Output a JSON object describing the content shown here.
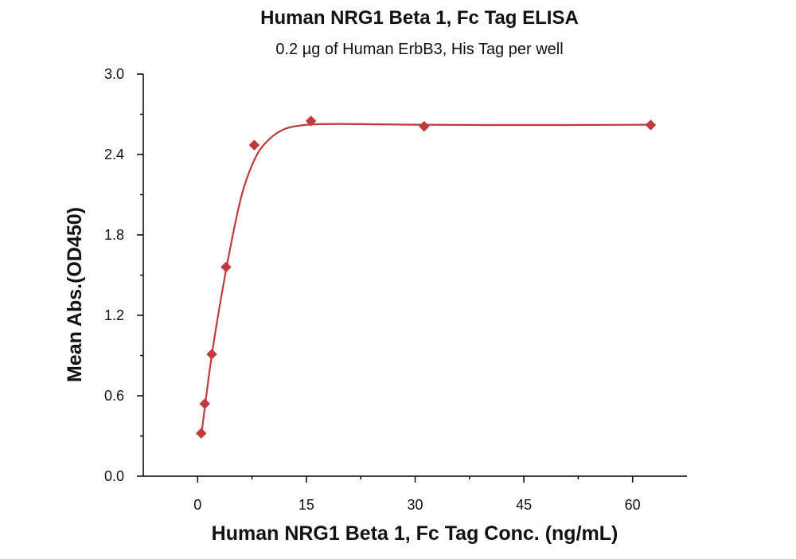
{
  "chart_data": {
    "type": "scatter",
    "title": "Human NRG1 Beta 1, Fc Tag ELISA",
    "subtitle": "0.2 µg of Human ErbB3, His Tag per well",
    "xlabel": "Human NRG1 Beta 1, Fc Tag Conc. (ng/mL)",
    "ylabel": "Mean Abs.(OD450)",
    "xlim": [
      -7.5,
      67.5
    ],
    "ylim": [
      0,
      3.0
    ],
    "x_ticks": [
      0,
      15,
      30,
      45,
      60
    ],
    "x_tick_labels": [
      "0",
      "15",
      "30",
      "45",
      "60"
    ],
    "y_ticks": [
      0,
      0.6,
      1.2,
      1.8,
      2.4,
      3.0
    ],
    "y_tick_labels": [
      "0.0",
      "0.6",
      "1.2",
      "1.8",
      "2.4",
      "3.0"
    ],
    "grid": false,
    "legend": "none",
    "color": "#c0393b",
    "series": [
      {
        "name": "OD450",
        "x": [
          0.49,
          0.98,
          1.95,
          3.91,
          7.81,
          15.63,
          31.25,
          62.5
        ],
        "y": [
          0.32,
          0.54,
          0.91,
          1.56,
          2.47,
          2.65,
          2.61,
          2.62
        ],
        "fit_curve": {
          "x": [
            0.49,
            2,
            4,
            6,
            8,
            10,
            12,
            14,
            16,
            20,
            25,
            30,
            40,
            50,
            62.5
          ],
          "y": [
            0.3,
            0.92,
            1.56,
            2.08,
            2.38,
            2.52,
            2.59,
            2.615,
            2.625,
            2.628,
            2.625,
            2.622,
            2.62,
            2.62,
            2.622
          ]
        }
      }
    ]
  }
}
